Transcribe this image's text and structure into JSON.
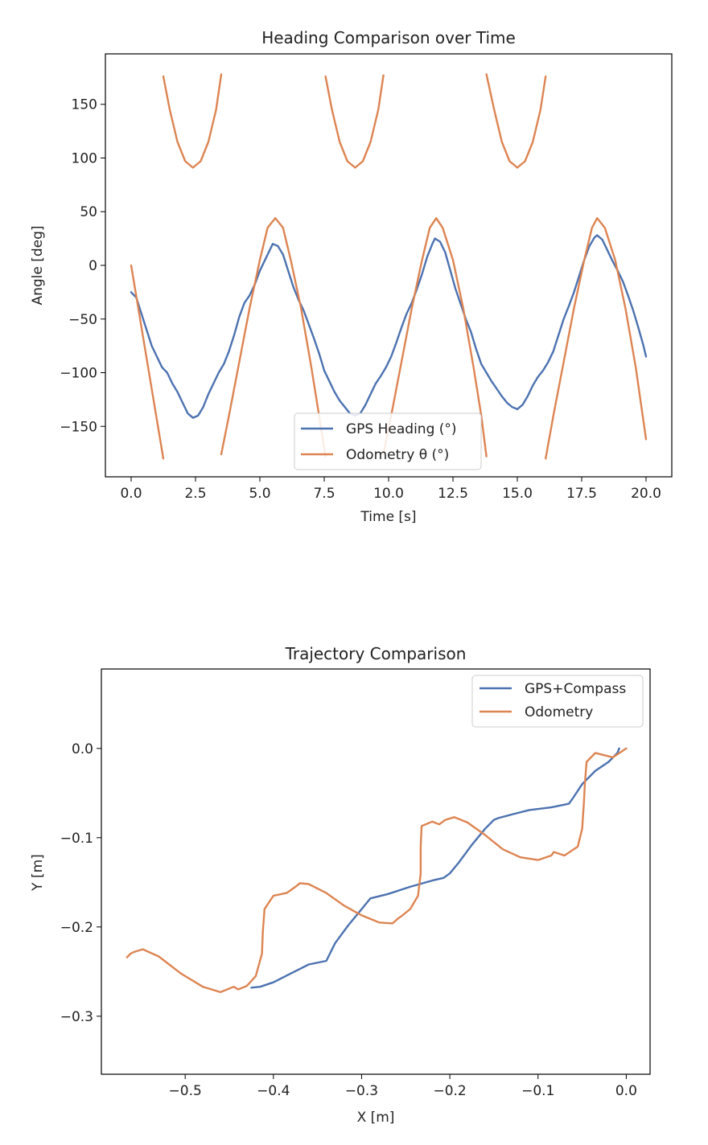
{
  "chart_data": [
    {
      "type": "line",
      "title": "Heading Comparison over Time",
      "xlabel": "Time [s]",
      "ylabel": "Angle [deg]",
      "xlim": [
        -1.0,
        21.0
      ],
      "ylim": [
        -197,
        197
      ],
      "xticks": [
        0.0,
        2.5,
        5.0,
        7.5,
        10.0,
        12.5,
        15.0,
        17.5,
        20.0
      ],
      "xtick_labels": [
        "0.0",
        "2.5",
        "5.0",
        "7.5",
        "10.0",
        "12.5",
        "15.0",
        "17.5",
        "20.0"
      ],
      "yticks": [
        150,
        100,
        50,
        0,
        -50,
        -100,
        -150
      ],
      "ytick_labels": [
        "150",
        "100",
        "50",
        "0",
        "−50",
        "−100",
        "−150"
      ],
      "grid": false,
      "legend_position": "lower-center",
      "colors": {
        "gps": "#4c72b0",
        "odometry": "#dd8452"
      },
      "series": [
        {
          "name": "GPS Heading (°)",
          "points": [
            [
              0.0,
              -25
            ],
            [
              0.2,
              -30
            ],
            [
              0.4,
              -45
            ],
            [
              0.6,
              -60
            ],
            [
              0.8,
              -75
            ],
            [
              1.0,
              -85
            ],
            [
              1.2,
              -95
            ],
            [
              1.4,
              -100
            ],
            [
              1.6,
              -110
            ],
            [
              1.8,
              -118
            ],
            [
              2.0,
              -128
            ],
            [
              2.2,
              -138
            ],
            [
              2.4,
              -142
            ],
            [
              2.6,
              -140
            ],
            [
              2.8,
              -132
            ],
            [
              3.0,
              -120
            ],
            [
              3.2,
              -110
            ],
            [
              3.4,
              -100
            ],
            [
              3.6,
              -92
            ],
            [
              3.8,
              -80
            ],
            [
              4.0,
              -65
            ],
            [
              4.2,
              -48
            ],
            [
              4.4,
              -35
            ],
            [
              4.6,
              -28
            ],
            [
              4.8,
              -18
            ],
            [
              5.0,
              -5
            ],
            [
              5.2,
              5
            ],
            [
              5.4,
              15
            ],
            [
              5.5,
              20
            ],
            [
              5.7,
              18
            ],
            [
              5.9,
              10
            ],
            [
              6.1,
              -5
            ],
            [
              6.3,
              -20
            ],
            [
              6.5,
              -32
            ],
            [
              6.7,
              -42
            ],
            [
              6.9,
              -55
            ],
            [
              7.1,
              -68
            ],
            [
              7.3,
              -82
            ],
            [
              7.5,
              -98
            ],
            [
              7.7,
              -108
            ],
            [
              7.9,
              -118
            ],
            [
              8.1,
              -126
            ],
            [
              8.3,
              -132
            ],
            [
              8.5,
              -138
            ],
            [
              8.7,
              -140
            ],
            [
              8.9,
              -138
            ],
            [
              9.1,
              -130
            ],
            [
              9.3,
              -120
            ],
            [
              9.5,
              -110
            ],
            [
              9.7,
              -103
            ],
            [
              9.9,
              -95
            ],
            [
              10.1,
              -85
            ],
            [
              10.3,
              -72
            ],
            [
              10.5,
              -58
            ],
            [
              10.7,
              -45
            ],
            [
              10.9,
              -35
            ],
            [
              11.1,
              -22
            ],
            [
              11.3,
              -8
            ],
            [
              11.5,
              8
            ],
            [
              11.7,
              20
            ],
            [
              11.8,
              25
            ],
            [
              12.0,
              22
            ],
            [
              12.2,
              12
            ],
            [
              12.4,
              -5
            ],
            [
              12.6,
              -22
            ],
            [
              12.8,
              -36
            ],
            [
              13.0,
              -50
            ],
            [
              13.2,
              -62
            ],
            [
              13.4,
              -78
            ],
            [
              13.6,
              -92
            ],
            [
              13.8,
              -100
            ],
            [
              14.0,
              -108
            ],
            [
              14.2,
              -115
            ],
            [
              14.4,
              -122
            ],
            [
              14.6,
              -128
            ],
            [
              14.8,
              -132
            ],
            [
              15.0,
              -134
            ],
            [
              15.2,
              -130
            ],
            [
              15.4,
              -122
            ],
            [
              15.6,
              -112
            ],
            [
              15.8,
              -104
            ],
            [
              16.0,
              -98
            ],
            [
              16.2,
              -90
            ],
            [
              16.4,
              -80
            ],
            [
              16.6,
              -65
            ],
            [
              16.8,
              -50
            ],
            [
              17.0,
              -38
            ],
            [
              17.2,
              -25
            ],
            [
              17.4,
              -10
            ],
            [
              17.6,
              5
            ],
            [
              17.8,
              18
            ],
            [
              18.0,
              26
            ],
            [
              18.1,
              28
            ],
            [
              18.3,
              24
            ],
            [
              18.5,
              14
            ],
            [
              18.7,
              4
            ],
            [
              18.9,
              -5
            ],
            [
              19.1,
              -15
            ],
            [
              19.3,
              -28
            ],
            [
              19.5,
              -42
            ],
            [
              19.7,
              -58
            ],
            [
              19.9,
              -75
            ],
            [
              20.0,
              -85
            ]
          ]
        },
        {
          "name": "Odometry θ (°)",
          "points": [
            [
              0.0,
              0
            ],
            [
              1.25,
              -180
            ],
            [
              null,
              null
            ],
            [
              1.25,
              176
            ],
            [
              1.5,
              145
            ],
            [
              1.8,
              115
            ],
            [
              2.1,
              97
            ],
            [
              2.4,
              91
            ],
            [
              2.7,
              97
            ],
            [
              3.0,
              115
            ],
            [
              3.3,
              145
            ],
            [
              3.5,
              178
            ],
            [
              null,
              null
            ],
            [
              3.5,
              -176
            ],
            [
              3.8,
              -140
            ],
            [
              4.2,
              -90
            ],
            [
              4.6,
              -40
            ],
            [
              5.0,
              5
            ],
            [
              5.3,
              35
            ],
            [
              5.6,
              44
            ],
            [
              5.9,
              35
            ],
            [
              6.2,
              5
            ],
            [
              6.6,
              -40
            ],
            [
              7.0,
              -95
            ],
            [
              7.3,
              -140
            ],
            [
              7.55,
              -178
            ],
            [
              null,
              null
            ],
            [
              7.55,
              176
            ],
            [
              7.8,
              145
            ],
            [
              8.1,
              115
            ],
            [
              8.4,
              97
            ],
            [
              8.7,
              91
            ],
            [
              9.0,
              97
            ],
            [
              9.3,
              115
            ],
            [
              9.6,
              145
            ],
            [
              9.8,
              177
            ],
            [
              null,
              null
            ],
            [
              9.8,
              -176
            ],
            [
              10.1,
              -140
            ],
            [
              10.5,
              -90
            ],
            [
              10.9,
              -40
            ],
            [
              11.3,
              5
            ],
            [
              11.6,
              35
            ],
            [
              11.85,
              44
            ],
            [
              12.1,
              35
            ],
            [
              12.5,
              5
            ],
            [
              12.9,
              -40
            ],
            [
              13.3,
              -95
            ],
            [
              13.6,
              -140
            ],
            [
              13.8,
              -178
            ],
            [
              null,
              null
            ],
            [
              13.8,
              178
            ],
            [
              14.1,
              145
            ],
            [
              14.4,
              115
            ],
            [
              14.7,
              97
            ],
            [
              15.0,
              91
            ],
            [
              15.3,
              97
            ],
            [
              15.6,
              115
            ],
            [
              15.9,
              145
            ],
            [
              16.1,
              176
            ],
            [
              null,
              null
            ],
            [
              16.1,
              -180
            ],
            [
              16.4,
              -140
            ],
            [
              16.8,
              -90
            ],
            [
              17.2,
              -40
            ],
            [
              17.6,
              5
            ],
            [
              17.9,
              35
            ],
            [
              18.1,
              44
            ],
            [
              18.4,
              35
            ],
            [
              18.8,
              5
            ],
            [
              19.2,
              -40
            ],
            [
              19.6,
              -95
            ],
            [
              20.0,
              -162
            ]
          ]
        }
      ]
    },
    {
      "type": "line",
      "title": "Trajectory Comparison",
      "xlabel": "X [m]",
      "ylabel": "Y [m]",
      "xlim": [
        -0.595,
        0.027
      ],
      "ylim": [
        -0.365,
        0.089
      ],
      "xticks": [
        -0.5,
        -0.4,
        -0.3,
        -0.2,
        -0.1,
        0.0
      ],
      "xtick_labels": [
        "−0.5",
        "−0.4",
        "−0.3",
        "−0.2",
        "−0.1",
        "0.0"
      ],
      "yticks": [
        0.0,
        -0.1,
        -0.2,
        -0.3
      ],
      "ytick_labels": [
        "0.0",
        "−0.1",
        "−0.2",
        "−0.3"
      ],
      "grid": false,
      "legend_position": "upper-right",
      "colors": {
        "gps": "#4c72b0",
        "odometry": "#dd8452"
      },
      "series": [
        {
          "name": "GPS+Compass",
          "points": [
            [
              -0.008,
              0.0
            ],
            [
              -0.01,
              -0.005
            ],
            [
              -0.02,
              -0.015
            ],
            [
              -0.035,
              -0.025
            ],
            [
              -0.05,
              -0.04
            ],
            [
              -0.06,
              -0.055
            ],
            [
              -0.065,
              -0.062
            ],
            [
              -0.085,
              -0.066
            ],
            [
              -0.11,
              -0.069
            ],
            [
              -0.13,
              -0.074
            ],
            [
              -0.145,
              -0.078
            ],
            [
              -0.15,
              -0.08
            ],
            [
              -0.16,
              -0.09
            ],
            [
              -0.175,
              -0.108
            ],
            [
              -0.19,
              -0.128
            ],
            [
              -0.2,
              -0.14
            ],
            [
              -0.207,
              -0.145
            ],
            [
              -0.22,
              -0.148
            ],
            [
              -0.245,
              -0.155
            ],
            [
              -0.27,
              -0.163
            ],
            [
              -0.29,
              -0.168
            ],
            [
              -0.3,
              -0.18
            ],
            [
              -0.315,
              -0.198
            ],
            [
              -0.33,
              -0.218
            ],
            [
              -0.34,
              -0.238
            ],
            [
              -0.36,
              -0.242
            ],
            [
              -0.38,
              -0.252
            ],
            [
              -0.4,
              -0.262
            ],
            [
              -0.415,
              -0.267
            ],
            [
              -0.425,
              -0.268
            ]
          ]
        },
        {
          "name": "Odometry",
          "points": [
            [
              0.0,
              0.0
            ],
            [
              -0.015,
              -0.01
            ],
            [
              -0.035,
              -0.005
            ],
            [
              -0.045,
              -0.015
            ],
            [
              -0.047,
              -0.04
            ],
            [
              -0.048,
              -0.06
            ],
            [
              -0.05,
              -0.09
            ],
            [
              -0.055,
              -0.11
            ],
            [
              -0.07,
              -0.12
            ],
            [
              -0.082,
              -0.116
            ],
            [
              -0.085,
              -0.12
            ],
            [
              -0.1,
              -0.125
            ],
            [
              -0.12,
              -0.122
            ],
            [
              -0.14,
              -0.113
            ],
            [
              -0.16,
              -0.097
            ],
            [
              -0.18,
              -0.083
            ],
            [
              -0.195,
              -0.077
            ],
            [
              -0.205,
              -0.08
            ],
            [
              -0.212,
              -0.085
            ],
            [
              -0.22,
              -0.082
            ],
            [
              -0.232,
              -0.087
            ],
            [
              -0.233,
              -0.11
            ],
            [
              -0.233,
              -0.14
            ],
            [
              -0.236,
              -0.165
            ],
            [
              -0.245,
              -0.18
            ],
            [
              -0.255,
              -0.188
            ],
            [
              -0.258,
              -0.19
            ],
            [
              -0.265,
              -0.196
            ],
            [
              -0.28,
              -0.195
            ],
            [
              -0.3,
              -0.187
            ],
            [
              -0.32,
              -0.176
            ],
            [
              -0.34,
              -0.162
            ],
            [
              -0.36,
              -0.152
            ],
            [
              -0.37,
              -0.151
            ],
            [
              -0.375,
              -0.155
            ],
            [
              -0.385,
              -0.162
            ],
            [
              -0.4,
              -0.165
            ],
            [
              -0.41,
              -0.18
            ],
            [
              -0.412,
              -0.205
            ],
            [
              -0.413,
              -0.23
            ],
            [
              -0.42,
              -0.255
            ],
            [
              -0.43,
              -0.266
            ],
            [
              -0.44,
              -0.27
            ],
            [
              -0.445,
              -0.267
            ],
            [
              -0.46,
              -0.273
            ],
            [
              -0.48,
              -0.267
            ],
            [
              -0.505,
              -0.252
            ],
            [
              -0.53,
              -0.233
            ],
            [
              -0.548,
              -0.225
            ],
            [
              -0.558,
              -0.228
            ],
            [
              -0.562,
              -0.23
            ],
            [
              -0.566,
              -0.234
            ]
          ]
        }
      ]
    }
  ]
}
